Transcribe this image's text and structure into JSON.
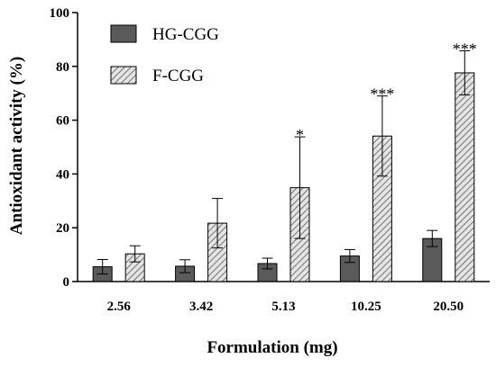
{
  "chart_data": {
    "type": "bar",
    "title": "",
    "xlabel": "Formulation (mg)",
    "ylabel": "Antioxidant activity (%)",
    "ylim": [
      0,
      100
    ],
    "yticks": [
      0,
      20,
      40,
      60,
      80,
      100
    ],
    "categories": [
      "2.56",
      "3.42",
      "5.13",
      "10.25",
      "20.50"
    ],
    "legend_position": "top-left",
    "grid": false,
    "series": [
      {
        "name": "HG-CGG",
        "fill": "solid",
        "color": "#5a5a5a",
        "values": [
          5.5,
          5.7,
          6.7,
          9.5,
          16.0
        ],
        "errors": [
          2.7,
          2.4,
          2.0,
          2.4,
          3.0
        ],
        "significance": [
          "",
          "",
          "",
          "",
          ""
        ]
      },
      {
        "name": "F-CGG",
        "fill": "hatched",
        "color": "#d0d0d0",
        "values": [
          10.3,
          21.7,
          34.9,
          54.1,
          77.6
        ],
        "errors": [
          3.0,
          9.2,
          18.9,
          14.9,
          8.2
        ],
        "significance": [
          "",
          "",
          "*",
          "***",
          "***"
        ]
      }
    ]
  }
}
